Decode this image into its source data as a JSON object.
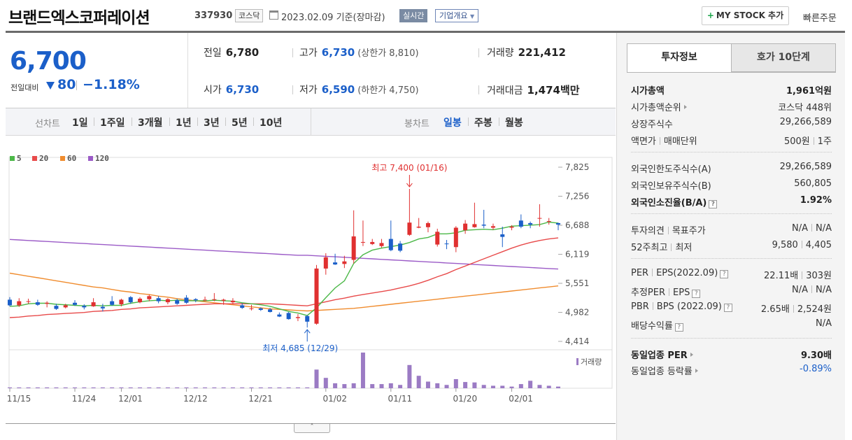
{
  "header": {
    "company_name": "브랜드엑스코퍼레이션",
    "code": "337930",
    "market": "코스닥",
    "date": "2023.02.09",
    "date_basis": "기준(장마감)",
    "realtime": "실시간",
    "company_overview": "기업개요",
    "mystock_label": "MY STOCK 추가",
    "quick_order": "빠른주문"
  },
  "price": {
    "current": "6,700",
    "change_label": "전일대비",
    "change": "80",
    "change_rate": "−1.18%",
    "direction": "down",
    "color_down": "#1b5fc9",
    "color_up": "#e03030"
  },
  "quote": {
    "prev_close_label": "전일",
    "prev_close": "6,780",
    "high_label": "고가",
    "high": "6,730",
    "upper_limit": "(상한가 8,810)",
    "volume_label": "거래량",
    "volume": "221,412",
    "open_label": "시가",
    "open": "6,730",
    "low_label": "저가",
    "low": "6,590",
    "lower_limit": "(하한가 4,750)",
    "amount_label": "거래대금",
    "amount": "1,474",
    "amount_unit": "백만"
  },
  "period_bar": {
    "line_chart_title": "선차트",
    "periods": [
      "1일",
      "1주일",
      "3개월",
      "1년",
      "3년",
      "5년",
      "10년"
    ],
    "candle_chart_title": "봉차트",
    "candle_periods": [
      "일봉",
      "주봉",
      "월봉"
    ],
    "active_candle": "일봉"
  },
  "chart_data": {
    "type": "candlestick",
    "legend": [
      {
        "name": "5",
        "color": "#4cb848"
      },
      {
        "name": "20",
        "color": "#e84a4a"
      },
      {
        "name": "60",
        "color": "#f08c2e"
      },
      {
        "name": "120",
        "color": "#9b5bc7"
      }
    ],
    "y_ticks": [
      "7,825",
      "7,256",
      "6,688",
      "6,119",
      "5,551",
      "4,982",
      "4,414"
    ],
    "y_range": [
      4414,
      7825
    ],
    "x_ticks": [
      {
        "label": "11/15",
        "index": 0
      },
      {
        "label": "11/24",
        "index": 7
      },
      {
        "label": "12/01",
        "index": 12
      },
      {
        "label": "12/12",
        "index": 19
      },
      {
        "label": "12/21",
        "index": 26
      },
      {
        "label": "01/02",
        "index": 34
      },
      {
        "label": "01/11",
        "index": 41
      },
      {
        "label": "01/20",
        "index": 48
      },
      {
        "label": "02/01",
        "index": 54
      }
    ],
    "high_annotation": {
      "text": "최고 7,400 (01/16)",
      "value": 7400,
      "index": 43
    },
    "low_annotation": {
      "text": "최저 4,685 (12/29)",
      "value": 4685,
      "index": 32
    },
    "volume_label": "거래량",
    "up_color": "#e03030",
    "down_color": "#1b5fc9",
    "volume_color": "#9b7bc4",
    "candles": [
      {
        "o": 5230,
        "h": 5280,
        "l": 5100,
        "c": 5120
      },
      {
        "o": 5120,
        "h": 5260,
        "l": 5090,
        "c": 5200
      },
      {
        "o": 5200,
        "h": 5250,
        "l": 5150,
        "c": 5200
      },
      {
        "o": 5180,
        "h": 5230,
        "l": 5110,
        "c": 5130
      },
      {
        "o": 5150,
        "h": 5200,
        "l": 5080,
        "c": 5170
      },
      {
        "o": 5110,
        "h": 5150,
        "l": 5030,
        "c": 5050
      },
      {
        "o": 5080,
        "h": 5150,
        "l": 5060,
        "c": 5120
      },
      {
        "o": 5170,
        "h": 5220,
        "l": 5110,
        "c": 5130
      },
      {
        "o": 5110,
        "h": 5140,
        "l": 5040,
        "c": 5080
      },
      {
        "o": 5100,
        "h": 5260,
        "l": 5090,
        "c": 5180
      },
      {
        "o": 5090,
        "h": 5150,
        "l": 5000,
        "c": 5060
      },
      {
        "o": 5200,
        "h": 5300,
        "l": 5110,
        "c": 5130
      },
      {
        "o": 5140,
        "h": 5250,
        "l": 5100,
        "c": 5230
      },
      {
        "o": 5280,
        "h": 5300,
        "l": 5150,
        "c": 5180
      },
      {
        "o": 5180,
        "h": 5280,
        "l": 5160,
        "c": 5250
      },
      {
        "o": 5240,
        "h": 5330,
        "l": 5200,
        "c": 5300
      },
      {
        "o": 5260,
        "h": 5300,
        "l": 5160,
        "c": 5200
      },
      {
        "o": 5180,
        "h": 5260,
        "l": 5140,
        "c": 5240
      },
      {
        "o": 5220,
        "h": 5250,
        "l": 5130,
        "c": 5150
      },
      {
        "o": 5270,
        "h": 5320,
        "l": 5150,
        "c": 5170
      },
      {
        "o": 5240,
        "h": 5260,
        "l": 5180,
        "c": 5220
      },
      {
        "o": 5230,
        "h": 5290,
        "l": 5200,
        "c": 5230
      },
      {
        "o": 5230,
        "h": 5360,
        "l": 5200,
        "c": 5240
      },
      {
        "o": 5210,
        "h": 5250,
        "l": 5130,
        "c": 5230
      },
      {
        "o": 5180,
        "h": 5260,
        "l": 5150,
        "c": 5210
      },
      {
        "o": 5120,
        "h": 5160,
        "l": 5050,
        "c": 5070
      },
      {
        "o": 5060,
        "h": 5130,
        "l": 5020,
        "c": 5060
      },
      {
        "o": 5060,
        "h": 5080,
        "l": 5010,
        "c": 5030
      },
      {
        "o": 5040,
        "h": 5070,
        "l": 4980,
        "c": 4990
      },
      {
        "o": 4940,
        "h": 4980,
        "l": 4890,
        "c": 4900
      },
      {
        "o": 4970,
        "h": 4990,
        "l": 4840,
        "c": 4850
      },
      {
        "o": 4870,
        "h": 4950,
        "l": 4810,
        "c": 4890
      },
      {
        "o": 4910,
        "h": 4930,
        "l": 4685,
        "c": 4800
      },
      {
        "o": 4760,
        "h": 5910,
        "l": 4740,
        "c": 5840
      },
      {
        "o": 5840,
        "h": 6140,
        "l": 5720,
        "c": 6060
      },
      {
        "o": 5960,
        "h": 6130,
        "l": 5910,
        "c": 5920
      },
      {
        "o": 5930,
        "h": 6090,
        "l": 5850,
        "c": 5980
      },
      {
        "o": 6010,
        "h": 6980,
        "l": 5940,
        "c": 6470
      },
      {
        "o": 6350,
        "h": 6780,
        "l": 6280,
        "c": 6360
      },
      {
        "o": 6320,
        "h": 6420,
        "l": 6300,
        "c": 6360
      },
      {
        "o": 6280,
        "h": 6420,
        "l": 6250,
        "c": 6340
      },
      {
        "o": 6420,
        "h": 6780,
        "l": 6180,
        "c": 6200
      },
      {
        "o": 6330,
        "h": 6380,
        "l": 6160,
        "c": 6190
      },
      {
        "o": 6500,
        "h": 7400,
        "l": 6480,
        "c": 6740
      },
      {
        "o": 6640,
        "h": 6830,
        "l": 6630,
        "c": 6660
      },
      {
        "o": 6650,
        "h": 6760,
        "l": 6550,
        "c": 6730
      },
      {
        "o": 6310,
        "h": 6620,
        "l": 6270,
        "c": 6560
      },
      {
        "o": 6330,
        "h": 6400,
        "l": 6220,
        "c": 6320
      },
      {
        "o": 6260,
        "h": 6670,
        "l": 6160,
        "c": 6640
      },
      {
        "o": 6590,
        "h": 6790,
        "l": 6520,
        "c": 6720
      },
      {
        "o": 6650,
        "h": 7130,
        "l": 6640,
        "c": 6710
      },
      {
        "o": 6700,
        "h": 6990,
        "l": 6630,
        "c": 6680
      },
      {
        "o": 6640,
        "h": 6720,
        "l": 6600,
        "c": 6670
      },
      {
        "o": 6510,
        "h": 6660,
        "l": 6260,
        "c": 6460
      },
      {
        "o": 6640,
        "h": 6690,
        "l": 6590,
        "c": 6660
      },
      {
        "o": 6780,
        "h": 6900,
        "l": 6630,
        "c": 6660
      },
      {
        "o": 6730,
        "h": 6760,
        "l": 6630,
        "c": 6700
      },
      {
        "o": 6820,
        "h": 7100,
        "l": 6660,
        "c": 6830
      },
      {
        "o": 6760,
        "h": 6830,
        "l": 6700,
        "c": 6770
      },
      {
        "o": 6730,
        "h": 6740,
        "l": 6590,
        "c": 6700
      }
    ],
    "volumes": [
      2,
      2,
      2,
      2,
      2,
      2,
      2,
      2,
      2,
      2,
      2,
      2,
      2,
      2,
      2,
      2,
      2,
      2,
      2,
      2,
      2,
      2,
      2,
      2,
      2,
      2,
      2,
      2,
      2,
      2,
      2,
      2,
      2,
      45,
      25,
      12,
      10,
      12,
      86,
      10,
      10,
      12,
      8,
      56,
      30,
      16,
      12,
      8,
      22,
      15,
      14,
      8,
      6,
      6,
      4,
      10,
      18,
      8,
      6,
      4
    ],
    "ma5": [
      5100,
      5110,
      5150,
      5160,
      5160,
      5140,
      5130,
      5120,
      5110,
      5120,
      5110,
      5120,
      5120,
      5160,
      5190,
      5210,
      5220,
      5210,
      5220,
      5210,
      5210,
      5210,
      5220,
      5210,
      5200,
      5170,
      5150,
      5130,
      5100,
      5050,
      5000,
      4970,
      4920,
      5070,
      5270,
      5460,
      5600,
      5940,
      6110,
      6200,
      6240,
      6270,
      6300,
      6350,
      6420,
      6450,
      6520,
      6520,
      6540,
      6590,
      6600,
      6610,
      6600,
      6630,
      6670,
      6680,
      6690,
      6700,
      6750,
      6730
    ],
    "ma20": [
      4880,
      4890,
      4910,
      4920,
      4940,
      4950,
      4960,
      4970,
      4980,
      5000,
      5010,
      5020,
      5040,
      5050,
      5070,
      5080,
      5090,
      5100,
      5110,
      5120,
      5130,
      5140,
      5150,
      5150,
      5150,
      5150,
      5150,
      5150,
      5150,
      5140,
      5130,
      5120,
      5110,
      5150,
      5190,
      5230,
      5260,
      5300,
      5330,
      5360,
      5390,
      5420,
      5460,
      5500,
      5550,
      5610,
      5680,
      5740,
      5820,
      5890,
      5960,
      6030,
      6100,
      6170,
      6240,
      6300,
      6350,
      6390,
      6420,
      6440
    ],
    "ma60": [
      5750,
      5720,
      5690,
      5660,
      5630,
      5600,
      5570,
      5540,
      5510,
      5480,
      5460,
      5430,
      5400,
      5380,
      5350,
      5330,
      5300,
      5280,
      5250,
      5230,
      5210,
      5190,
      5170,
      5150,
      5130,
      5110,
      5090,
      5070,
      5050,
      5040,
      5030,
      5020,
      5010,
      5020,
      5030,
      5040,
      5050,
      5060,
      5080,
      5100,
      5120,
      5140,
      5160,
      5180,
      5200,
      5220,
      5240,
      5260,
      5280,
      5300,
      5320,
      5340,
      5360,
      5380,
      5400,
      5420,
      5440,
      5460,
      5480,
      5500
    ],
    "ma120": [
      6410,
      6400,
      6390,
      6380,
      6370,
      6360,
      6350,
      6340,
      6330,
      6320,
      6310,
      6300,
      6290,
      6280,
      6270,
      6260,
      6250,
      6240,
      6230,
      6220,
      6210,
      6200,
      6190,
      6180,
      6170,
      6160,
      6150,
      6140,
      6130,
      6120,
      6110,
      6100,
      6100,
      6090,
      6080,
      6070,
      6060,
      6050,
      6040,
      6030,
      6020,
      6010,
      6000,
      5990,
      5980,
      5970,
      5960,
      5950,
      5940,
      5930,
      5920,
      5910,
      5900,
      5890,
      5880,
      5870,
      5860,
      5850,
      5840,
      5830
    ]
  },
  "right_panel": {
    "tab_invest": "투자정보",
    "tab_orderbook": "호가 10단계",
    "market_cap_label": "시가총액",
    "market_cap": "1,961억원",
    "market_cap_rank_label": "시가총액순위",
    "market_cap_rank": "코스닥 448위",
    "listed_shares_label": "상장주식수",
    "listed_shares": "29,266,589",
    "face_value_label": "액면가",
    "trade_unit_label": "매매단위",
    "face_value": "500원",
    "trade_unit": "1주",
    "foreign_limit_label": "외국인한도주식수(A)",
    "foreign_limit": "29,266,589",
    "foreign_hold_label": "외국인보유주식수(B)",
    "foreign_hold": "560,805",
    "foreign_ratio_label": "외국인소진율(B/A)",
    "foreign_ratio": "1.92%",
    "opinion_label": "투자의견",
    "target_price_label": "목표주가",
    "opinion": "N/A",
    "target_price": "N/A",
    "w52_high_label": "52주최고",
    "w52_low_label": "최저",
    "w52_high": "9,580",
    "w52_low": "4,405",
    "per_label": "PER",
    "eps_label": "EPS(2022.09)",
    "per": "22.11배",
    "eps": "303원",
    "est_per_label": "추정PER",
    "est_eps_label": "EPS",
    "est_per": "N/A",
    "est_eps": "N/A",
    "pbr_label": "PBR",
    "bps_label": "BPS (2022.09)",
    "pbr": "2.65배",
    "bps": "2,524원",
    "dividend_label": "배당수익률",
    "dividend": "N/A",
    "industry_per_label": "동일업종 PER",
    "industry_per": "9.30배",
    "industry_change_label": "동일업종 등락률",
    "industry_change": "-0.89%"
  }
}
